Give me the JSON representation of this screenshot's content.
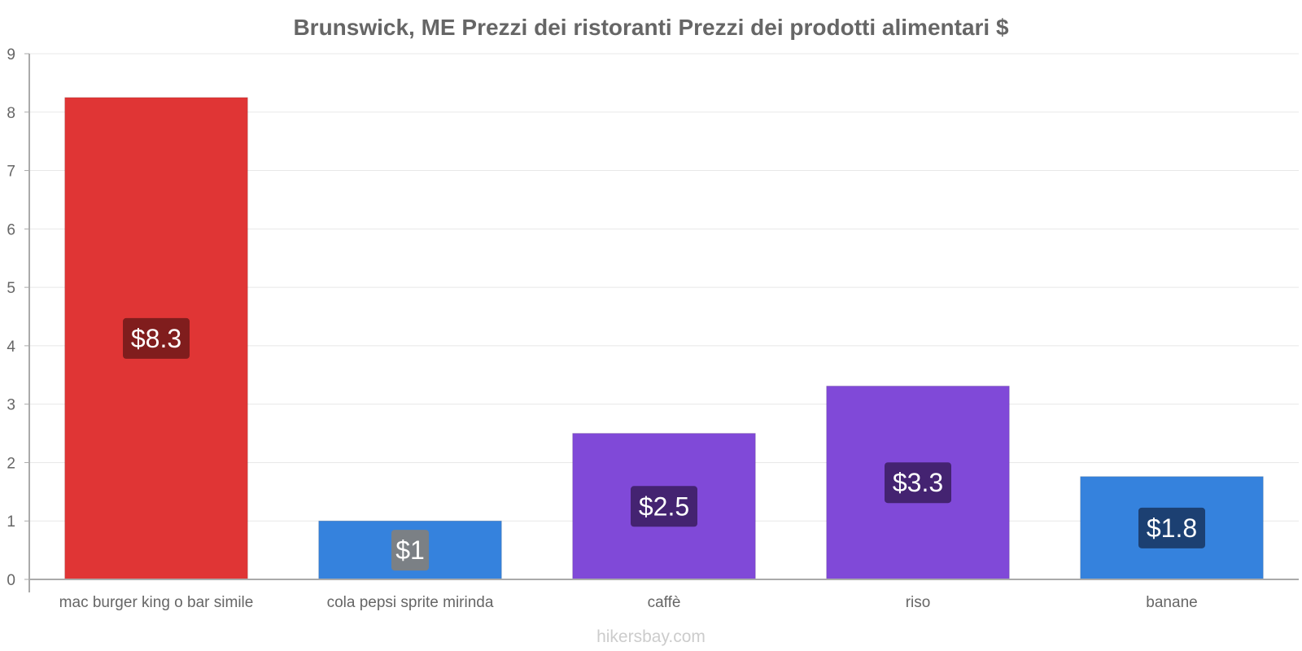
{
  "chart_data": {
    "type": "bar",
    "title": "Brunswick, ME Prezzi dei ristoranti Prezzi dei prodotti alimentari $",
    "categories": [
      "mac burger king o bar simile",
      "cola pepsi sprite mirinda",
      "caffè",
      "riso",
      "banane"
    ],
    "values": [
      8.25,
      1.0,
      2.5,
      3.31,
      1.76
    ],
    "value_labels": [
      "$8.3",
      "$1",
      "$2.5",
      "$3.3",
      "$1.8"
    ],
    "bar_colors": [
      "#e03535",
      "#3582dd",
      "#8049d8",
      "#8049d8",
      "#3582dd"
    ],
    "label_bg_colors": [
      "#7a1c1c",
      "#808080",
      "#40226b",
      "#40226b",
      "#1b3c6b"
    ],
    "y_ticks": [
      "0",
      "1",
      "2",
      "3",
      "4",
      "5",
      "6",
      "7",
      "8",
      "9"
    ],
    "ylim": [
      0,
      9
    ],
    "xlabel": "",
    "ylabel": "",
    "grid": true
  },
  "watermark": "hikersbay.com"
}
